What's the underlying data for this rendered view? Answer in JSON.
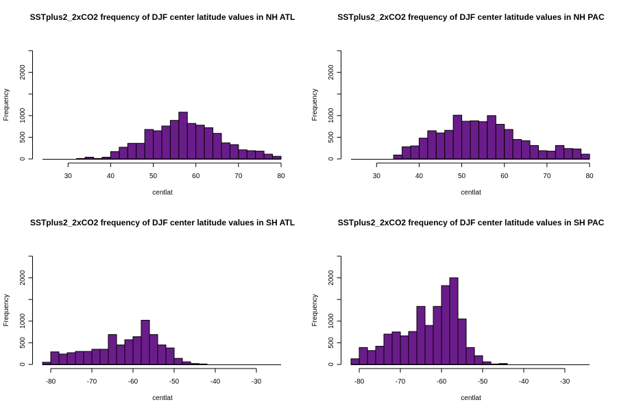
{
  "chart_data": [
    {
      "type": "bar",
      "title": "SSTplus2_2xCO2 frequency of DJF center latitude values in NH ATL",
      "xlabel": "centlat",
      "ylabel": "Frequency",
      "bin_width": 2,
      "bin_starts": [
        24,
        26,
        28,
        30,
        32,
        34,
        36,
        38,
        40,
        42,
        44,
        46,
        48,
        50,
        52,
        54,
        56,
        58,
        60,
        62,
        64,
        66,
        68,
        70,
        72,
        74,
        76,
        78
      ],
      "values": [
        0,
        0,
        0,
        0,
        10,
        40,
        10,
        40,
        170,
        270,
        360,
        360,
        680,
        650,
        760,
        890,
        1080,
        820,
        780,
        720,
        590,
        370,
        330,
        210,
        190,
        180,
        110,
        60
      ],
      "xlim": [
        24,
        80
      ],
      "ylim": [
        0,
        2500
      ],
      "xticks": [
        30,
        40,
        50,
        60,
        70,
        80
      ],
      "yticks": [
        0,
        500,
        1000,
        2000
      ],
      "bar_color": "#6a1d8a"
    },
    {
      "type": "bar",
      "title": "SSTplus2_2xCO2 frequency of DJF center latitude values in NH PAC",
      "xlabel": "centlat",
      "ylabel": "Frequency",
      "bin_width": 2,
      "bin_starts": [
        24,
        26,
        28,
        30,
        32,
        34,
        36,
        38,
        40,
        42,
        44,
        46,
        48,
        50,
        52,
        54,
        56,
        58,
        60,
        62,
        64,
        66,
        68,
        70,
        72,
        74,
        76,
        78
      ],
      "values": [
        0,
        0,
        0,
        0,
        0,
        90,
        280,
        300,
        480,
        650,
        600,
        660,
        1010,
        870,
        880,
        860,
        1000,
        800,
        680,
        450,
        420,
        310,
        190,
        180,
        310,
        240,
        230,
        110
      ],
      "xlim": [
        24,
        80
      ],
      "ylim": [
        0,
        2500
      ],
      "xticks": [
        30,
        40,
        50,
        60,
        70,
        80
      ],
      "yticks": [
        0,
        500,
        1000,
        2000
      ],
      "bar_color": "#6a1d8a"
    },
    {
      "type": "bar",
      "title": "SSTplus2_2xCO2 frequency of DJF center latitude values in SH ATL",
      "xlabel": "centlat",
      "ylabel": "Frequency",
      "bin_width": 2,
      "bin_starts": [
        -82,
        -80,
        -78,
        -76,
        -74,
        -72,
        -70,
        -68,
        -66,
        -64,
        -62,
        -60,
        -58,
        -56,
        -54,
        -52,
        -50,
        -48,
        -46,
        -44,
        -42,
        -40,
        -38,
        -36,
        -34,
        -32,
        -30,
        -28,
        -26
      ],
      "values": [
        50,
        290,
        240,
        270,
        300,
        300,
        350,
        350,
        690,
        450,
        570,
        640,
        1020,
        690,
        450,
        380,
        140,
        60,
        20,
        10,
        0,
        0,
        0,
        0,
        0,
        0,
        0,
        0,
        0
      ],
      "xlim": [
        -82,
        -24
      ],
      "ylim": [
        0,
        2500
      ],
      "xticks": [
        -80,
        -70,
        -60,
        -50,
        -40,
        -30
      ],
      "yticks": [
        0,
        500,
        1000,
        2000
      ],
      "bar_color": "#6a1d8a"
    },
    {
      "type": "bar",
      "title": "SSTplus2_2xCO2 frequency of DJF center latitude values in SH PAC",
      "xlabel": "centlat",
      "ylabel": "Frequency",
      "bin_width": 2,
      "bin_starts": [
        -82,
        -80,
        -78,
        -76,
        -74,
        -72,
        -70,
        -68,
        -66,
        -64,
        -62,
        -60,
        -58,
        -56,
        -54,
        -52,
        -50,
        -48,
        -46,
        -44,
        -42,
        -40,
        -38,
        -36,
        -34,
        -32,
        -30,
        -28,
        -26
      ],
      "values": [
        130,
        390,
        320,
        420,
        700,
        750,
        660,
        760,
        1340,
        900,
        1340,
        1820,
        2000,
        1050,
        390,
        200,
        60,
        10,
        20,
        0,
        0,
        0,
        0,
        0,
        0,
        0,
        0,
        0,
        0
      ],
      "xlim": [
        -82,
        -24
      ],
      "ylim": [
        0,
        2500
      ],
      "xticks": [
        -80,
        -70,
        -60,
        -50,
        -40,
        -30
      ],
      "yticks": [
        0,
        500,
        1000,
        2000
      ],
      "bar_color": "#6a1d8a"
    }
  ]
}
